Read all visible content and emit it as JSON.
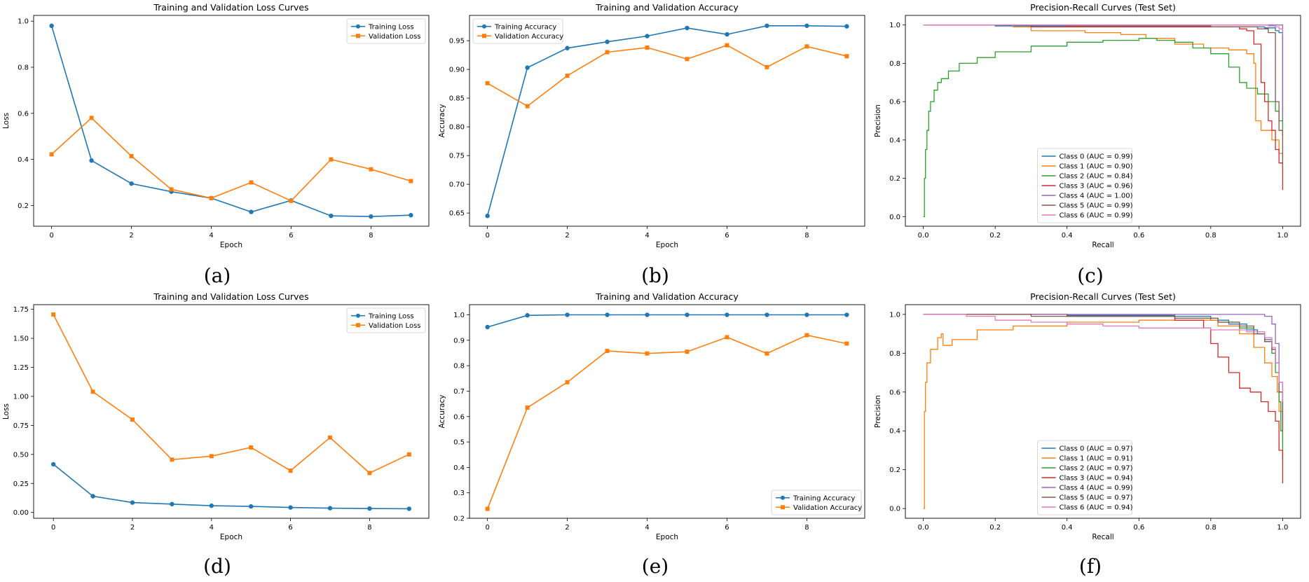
{
  "colors": {
    "train": "#1f77b4",
    "val": "#ff7f0e",
    "classes": [
      "#1f77b4",
      "#ff7f0e",
      "#2ca02c",
      "#d62728",
      "#9467bd",
      "#8c564b",
      "#e377c2"
    ]
  },
  "chart_data": [
    {
      "id": "a",
      "caption": "(a)",
      "type": "line",
      "title": "Training and Validation Loss Curves",
      "xlabel": "Epoch",
      "ylabel": "Loss",
      "xlim": [
        -0.45,
        9.45
      ],
      "ylim": [
        0.11,
        1.025
      ],
      "xticks": [
        0,
        2,
        4,
        6,
        8
      ],
      "xtick_labels": [
        "0",
        "2",
        "4",
        "6",
        "8"
      ],
      "yticks": [
        0.2,
        0.4,
        0.6,
        0.8,
        1.0
      ],
      "ytick_labels": [
        "0.2",
        "0.4",
        "0.6",
        "0.8",
        "1.0"
      ],
      "legend_loc": "top-right",
      "x": [
        0,
        1,
        2,
        3,
        4,
        5,
        6,
        7,
        8,
        9
      ],
      "series": [
        {
          "name": "Training Loss",
          "marker": "circle",
          "color_key": "train",
          "values": [
            0.98,
            0.395,
            0.295,
            0.26,
            0.232,
            0.172,
            0.222,
            0.155,
            0.152,
            0.158
          ]
        },
        {
          "name": "Validation Loss",
          "marker": "square",
          "color_key": "val",
          "values": [
            0.422,
            0.58,
            0.414,
            0.27,
            0.232,
            0.3,
            0.22,
            0.4,
            0.357,
            0.306
          ]
        }
      ]
    },
    {
      "id": "b",
      "caption": "(b)",
      "type": "line",
      "title": "Training and Validation Accuracy",
      "xlabel": "Epoch",
      "ylabel": "Accuracy",
      "xlim": [
        -0.45,
        9.45
      ],
      "ylim": [
        0.627,
        0.994
      ],
      "xticks": [
        0,
        2,
        4,
        6,
        8
      ],
      "xtick_labels": [
        "0",
        "2",
        "4",
        "6",
        "8"
      ],
      "yticks": [
        0.65,
        0.7,
        0.75,
        0.8,
        0.85,
        0.9,
        0.95
      ],
      "ytick_labels": [
        "0.65",
        "0.70",
        "0.75",
        "0.80",
        "0.85",
        "0.90",
        "0.95"
      ],
      "legend_loc": "top-left",
      "x": [
        0,
        1,
        2,
        3,
        4,
        5,
        6,
        7,
        8,
        9
      ],
      "series": [
        {
          "name": "Training Accuracy",
          "marker": "circle",
          "color_key": "train",
          "values": [
            0.645,
            0.903,
            0.937,
            0.948,
            0.958,
            0.972,
            0.961,
            0.976,
            0.976,
            0.975
          ]
        },
        {
          "name": "Validation Accuracy",
          "marker": "square",
          "color_key": "val",
          "values": [
            0.876,
            0.836,
            0.889,
            0.93,
            0.938,
            0.918,
            0.942,
            0.904,
            0.94,
            0.923
          ]
        }
      ]
    },
    {
      "id": "c",
      "caption": "(c)",
      "type": "line",
      "title": "Precision-Recall Curves (Test Set)",
      "xlabel": "Recall",
      "ylabel": "Precision",
      "xlim": [
        -0.05,
        1.05
      ],
      "ylim": [
        -0.05,
        1.05
      ],
      "xticks": [
        0,
        0.2,
        0.4,
        0.6,
        0.8,
        1.0
      ],
      "xtick_labels": [
        "0.0",
        "0.2",
        "0.4",
        "0.6",
        "0.8",
        "1.0"
      ],
      "yticks": [
        0,
        0.2,
        0.4,
        0.6,
        0.8,
        1.0
      ],
      "ytick_labels": [
        "0.0",
        "0.2",
        "0.4",
        "0.6",
        "0.8",
        "1.0"
      ],
      "legend_loc": "lower-center",
      "series": [
        {
          "name": "Class 0 (AUC = 0.99)",
          "color_index": 0,
          "x": [
            0,
            0.005,
            0.2,
            0.5,
            0.8,
            0.95,
            0.98,
            0.99,
            1.0,
            1.0
          ],
          "y": [
            1,
            1,
            0.995,
            0.99,
            0.99,
            0.985,
            0.97,
            0.96,
            0.95,
            0.5
          ]
        },
        {
          "name": "Class 1 (AUC = 0.90)",
          "color_index": 1,
          "x": [
            0,
            0.005,
            0.25,
            0.3,
            0.45,
            0.55,
            0.62,
            0.7,
            0.78,
            0.85,
            0.9,
            0.92,
            0.925,
            0.94,
            0.97,
            0.99,
            1.0
          ],
          "y": [
            1,
            1,
            0.99,
            0.97,
            0.96,
            0.95,
            0.93,
            0.9,
            0.88,
            0.87,
            0.85,
            0.8,
            0.5,
            0.45,
            0.4,
            0.33,
            0.3
          ]
        },
        {
          "name": "Class 2 (AUC = 0.84)",
          "color_index": 2,
          "x": [
            0,
            0.003,
            0.006,
            0.01,
            0.015,
            0.02,
            0.03,
            0.04,
            0.05,
            0.07,
            0.1,
            0.15,
            0.2,
            0.3,
            0.4,
            0.5,
            0.6,
            0.65,
            0.7,
            0.75,
            0.8,
            0.85,
            0.88,
            0.9,
            0.93,
            0.96,
            0.98,
            0.99,
            1.0
          ],
          "y": [
            0,
            0.2,
            0.35,
            0.45,
            0.55,
            0.6,
            0.66,
            0.7,
            0.72,
            0.76,
            0.8,
            0.83,
            0.86,
            0.89,
            0.91,
            0.92,
            0.93,
            0.92,
            0.91,
            0.88,
            0.85,
            0.78,
            0.7,
            0.67,
            0.64,
            0.6,
            0.55,
            0.5,
            0.42
          ]
        },
        {
          "name": "Class 3 (AUC = 0.96)",
          "color_index": 3,
          "x": [
            0,
            0.005,
            0.3,
            0.6,
            0.8,
            0.88,
            0.9,
            0.92,
            0.94,
            0.95,
            0.96,
            0.97,
            0.98,
            0.99,
            1.0
          ],
          "y": [
            1,
            1,
            0.99,
            0.99,
            0.99,
            0.98,
            0.97,
            0.9,
            0.7,
            0.6,
            0.5,
            0.45,
            0.35,
            0.28,
            0.14
          ]
        },
        {
          "name": "Class 4 (AUC = 1.00)",
          "color_index": 4,
          "x": [
            0,
            0.005,
            0.5,
            0.95,
            0.99,
            1.0,
            1.0
          ],
          "y": [
            1,
            1,
            1,
            1,
            1,
            1,
            0.5
          ]
        },
        {
          "name": "Class 5 (AUC = 0.99)",
          "color_index": 5,
          "x": [
            0,
            0.005,
            0.4,
            0.8,
            0.93,
            0.96,
            0.98,
            0.99,
            1.0
          ],
          "y": [
            1,
            1,
            0.995,
            0.99,
            0.98,
            0.96,
            0.6,
            0.45,
            0.25
          ]
        },
        {
          "name": "Class 6 (AUC = 0.99)",
          "color_index": 6,
          "x": [
            0,
            0.005,
            0.6,
            0.96,
            0.98,
            0.99,
            1.0
          ],
          "y": [
            1,
            1,
            1,
            0.995,
            0.99,
            0.98,
            0.95
          ]
        }
      ]
    },
    {
      "id": "d",
      "caption": "(d)",
      "type": "line",
      "title": "Training and Validation Loss Curves",
      "xlabel": "Epoch",
      "ylabel": "Loss",
      "xlim": [
        -0.5,
        9.5
      ],
      "ylim": [
        -0.05,
        1.79
      ],
      "xticks": [
        0,
        2,
        4,
        6,
        8
      ],
      "xtick_labels": [
        "0",
        "2",
        "4",
        "6",
        "8"
      ],
      "yticks": [
        0,
        0.25,
        0.5,
        0.75,
        1.0,
        1.25,
        1.5,
        1.75
      ],
      "ytick_labels": [
        "0.00",
        "0.25",
        "0.50",
        "0.75",
        "1.00",
        "1.25",
        "1.50",
        "1.75"
      ],
      "legend_loc": "top-right",
      "x": [
        0,
        1,
        2,
        3,
        4,
        5,
        6,
        7,
        8,
        9
      ],
      "series": [
        {
          "name": "Training Loss",
          "marker": "circle",
          "color_key": "train",
          "values": [
            0.415,
            0.14,
            0.085,
            0.072,
            0.058,
            0.052,
            0.043,
            0.037,
            0.034,
            0.032
          ]
        },
        {
          "name": "Validation Loss",
          "marker": "square",
          "color_key": "val",
          "values": [
            1.705,
            1.04,
            0.8,
            0.455,
            0.485,
            0.56,
            0.36,
            0.645,
            0.34,
            0.5
          ]
        }
      ]
    },
    {
      "id": "e",
      "caption": "(e)",
      "type": "line",
      "title": "Training and Validation Accuracy",
      "xlabel": "Epoch",
      "ylabel": "Accuracy",
      "xlim": [
        -0.45,
        9.45
      ],
      "ylim": [
        0.2,
        1.04
      ],
      "xticks": [
        0,
        2,
        4,
        6,
        8
      ],
      "xtick_labels": [
        "0",
        "2",
        "4",
        "6",
        "8"
      ],
      "yticks": [
        0.2,
        0.3,
        0.4,
        0.5,
        0.6,
        0.7,
        0.8,
        0.9,
        1.0
      ],
      "ytick_labels": [
        "0.2",
        "0.3",
        "0.4",
        "0.5",
        "0.6",
        "0.7",
        "0.8",
        "0.9",
        "1.0"
      ],
      "legend_loc": "bottom-right",
      "x": [
        0,
        1,
        2,
        3,
        4,
        5,
        6,
        7,
        8,
        9
      ],
      "series": [
        {
          "name": "Training Accuracy",
          "marker": "circle",
          "color_key": "train",
          "values": [
            0.952,
            0.998,
            1.0,
            1.0,
            1.0,
            1.0,
            1.0,
            1.0,
            1.0,
            1.0
          ]
        },
        {
          "name": "Validation Accuracy",
          "marker": "square",
          "color_key": "val",
          "values": [
            0.237,
            0.635,
            0.735,
            0.858,
            0.848,
            0.855,
            0.912,
            0.848,
            0.92,
            0.887
          ]
        }
      ]
    },
    {
      "id": "f",
      "caption": "(f)",
      "type": "line",
      "title": "Precision-Recall Curves (Test Set)",
      "xlabel": "Recall",
      "ylabel": "Precision",
      "xlim": [
        -0.05,
        1.05
      ],
      "ylim": [
        -0.05,
        1.05
      ],
      "xticks": [
        0,
        0.2,
        0.4,
        0.6,
        0.8,
        1.0
      ],
      "xtick_labels": [
        "0.0",
        "0.2",
        "0.4",
        "0.6",
        "0.8",
        "1.0"
      ],
      "yticks": [
        0,
        0.2,
        0.4,
        0.6,
        0.8,
        1.0
      ],
      "ytick_labels": [
        "0.0",
        "0.2",
        "0.4",
        "0.6",
        "0.8",
        "1.0"
      ],
      "legend_loc": "lower-center",
      "series": [
        {
          "name": "Class 0 (AUC = 0.97)",
          "color_index": 0,
          "x": [
            0,
            0.005,
            0.4,
            0.7,
            0.8,
            0.85,
            0.9,
            0.93,
            0.95,
            0.97,
            0.98,
            0.99,
            1.0
          ],
          "y": [
            1,
            1,
            0.995,
            0.99,
            0.97,
            0.95,
            0.92,
            0.9,
            0.87,
            0.82,
            0.75,
            0.6,
            0.4
          ]
        },
        {
          "name": "Class 1 (AUC = 0.91)",
          "color_index": 1,
          "x": [
            0,
            0.003,
            0.006,
            0.01,
            0.02,
            0.04,
            0.05,
            0.055,
            0.08,
            0.15,
            0.25,
            0.4,
            0.6,
            0.75,
            0.82,
            0.88,
            0.92,
            0.95,
            0.97,
            0.985,
            0.99,
            1.0
          ],
          "y": [
            0,
            0.5,
            0.65,
            0.75,
            0.82,
            0.88,
            0.9,
            0.84,
            0.87,
            0.92,
            0.94,
            0.96,
            0.97,
            0.97,
            0.94,
            0.9,
            0.83,
            0.75,
            0.68,
            0.6,
            0.5,
            0.35
          ]
        },
        {
          "name": "Class 2 (AUC = 0.97)",
          "color_index": 2,
          "x": [
            0,
            0.005,
            0.4,
            0.7,
            0.82,
            0.88,
            0.92,
            0.95,
            0.97,
            0.98,
            0.99,
            0.995,
            1.0
          ],
          "y": [
            1,
            1,
            0.99,
            0.98,
            0.96,
            0.93,
            0.9,
            0.86,
            0.8,
            0.7,
            0.55,
            0.4,
            0.25
          ]
        },
        {
          "name": "Class 3 (AUC = 0.94)",
          "color_index": 3,
          "x": [
            0,
            0.005,
            0.4,
            0.7,
            0.78,
            0.8,
            0.82,
            0.85,
            0.88,
            0.91,
            0.94,
            0.96,
            0.98,
            0.99,
            1.0
          ],
          "y": [
            1,
            1,
            0.99,
            0.97,
            0.93,
            0.85,
            0.78,
            0.7,
            0.62,
            0.6,
            0.55,
            0.5,
            0.45,
            0.3,
            0.13
          ]
        },
        {
          "name": "Class 4 (AUC = 0.99)",
          "color_index": 4,
          "x": [
            0,
            0.005,
            0.5,
            0.9,
            0.95,
            0.97,
            0.98,
            0.99,
            1.0
          ],
          "y": [
            1,
            1,
            1,
            1,
            0.99,
            0.95,
            0.85,
            0.65,
            0.45
          ]
        },
        {
          "name": "Class 5 (AUC = 0.97)",
          "color_index": 5,
          "x": [
            0,
            0.005,
            0.3,
            0.7,
            0.82,
            0.88,
            0.92,
            0.95,
            0.97,
            0.98,
            0.99,
            1.0
          ],
          "y": [
            1,
            1,
            0.99,
            0.98,
            0.96,
            0.94,
            0.9,
            0.86,
            0.82,
            0.75,
            0.6,
            0.4
          ]
        },
        {
          "name": "Class 6 (AUC = 0.94)",
          "color_index": 6,
          "x": [
            0,
            0.005,
            0.12,
            0.2,
            0.3,
            0.4,
            0.5,
            0.6,
            0.7,
            0.8,
            0.9,
            0.95,
            0.97,
            0.98,
            0.99,
            1.0
          ],
          "y": [
            1,
            1,
            0.99,
            0.97,
            0.96,
            0.95,
            0.94,
            0.93,
            0.93,
            0.92,
            0.91,
            0.88,
            0.83,
            0.75,
            0.65,
            0.55
          ]
        }
      ]
    }
  ]
}
